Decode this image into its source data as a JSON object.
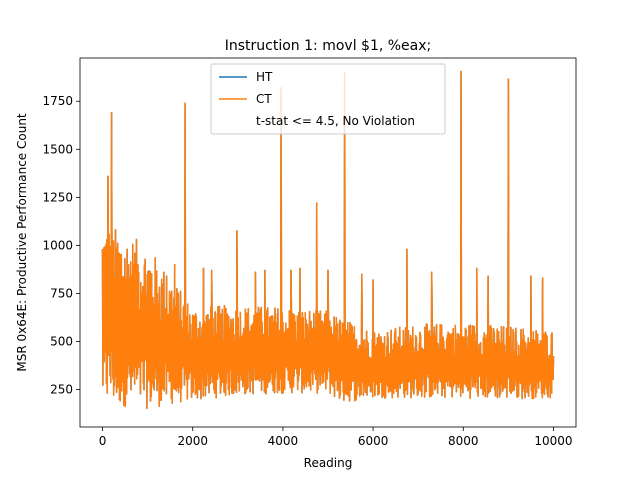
{
  "chart_data": {
    "type": "line",
    "title": "Instruction 1: movl $1, %eax;",
    "xlabel": "Reading",
    "ylabel": "MSR 0x64E: Productive Performance Count",
    "xlim": [
      -500,
      10500
    ],
    "ylim": [
      55,
      1975
    ],
    "xticks": [
      0,
      2000,
      4000,
      6000,
      8000,
      10000
    ],
    "xtick_labels": [
      "0",
      "2000",
      "4000",
      "6000",
      "8000",
      "10000"
    ],
    "yticks": [
      250,
      500,
      750,
      1000,
      1250,
      1500,
      1750
    ],
    "ytick_labels": [
      "250",
      "500",
      "750",
      "1000",
      "1250",
      "1500",
      "1750"
    ],
    "grid": false,
    "legend_placement": "upper center",
    "legend": [
      "HT",
      "CT",
      "t-stat <= 4.5, No Violation"
    ],
    "noise_band": {
      "x": [
        0,
        1000,
        2000,
        3000,
        4000,
        5000,
        5300,
        6000,
        7000,
        8000,
        9000,
        10000
      ],
      "low": [
        170,
        150,
        190,
        220,
        230,
        230,
        180,
        205,
        205,
        205,
        200,
        205
      ],
      "high": [
        1130,
        1000,
        680,
        690,
        680,
        660,
        620,
        560,
        590,
        600,
        580,
        560
      ]
    },
    "spikes": [
      {
        "x": 200,
        "y": 1690
      },
      {
        "x": 120,
        "y": 1360
      },
      {
        "x": 1830,
        "y": 1740
      },
      {
        "x": 2980,
        "y": 1075
      },
      {
        "x": 3960,
        "y": 1820
      },
      {
        "x": 4750,
        "y": 1220
      },
      {
        "x": 5370,
        "y": 1900
      },
      {
        "x": 6750,
        "y": 980
      },
      {
        "x": 7950,
        "y": 1905
      },
      {
        "x": 9000,
        "y": 1865
      },
      {
        "x": 1420,
        "y": 840
      },
      {
        "x": 1600,
        "y": 900
      },
      {
        "x": 2240,
        "y": 880
      },
      {
        "x": 2420,
        "y": 870
      },
      {
        "x": 3390,
        "y": 860
      },
      {
        "x": 3600,
        "y": 870
      },
      {
        "x": 4180,
        "y": 870
      },
      {
        "x": 4380,
        "y": 880
      },
      {
        "x": 5000,
        "y": 870
      },
      {
        "x": 5750,
        "y": 850
      },
      {
        "x": 6000,
        "y": 820
      },
      {
        "x": 7300,
        "y": 860
      },
      {
        "x": 8300,
        "y": 880
      },
      {
        "x": 8550,
        "y": 840
      },
      {
        "x": 9500,
        "y": 840
      },
      {
        "x": 9760,
        "y": 830
      }
    ],
    "series": [
      {
        "name": "HT",
        "color": "#1f77b4",
        "visible": "hidden beneath CT"
      },
      {
        "name": "CT",
        "color": "#ff7f0e"
      }
    ]
  }
}
